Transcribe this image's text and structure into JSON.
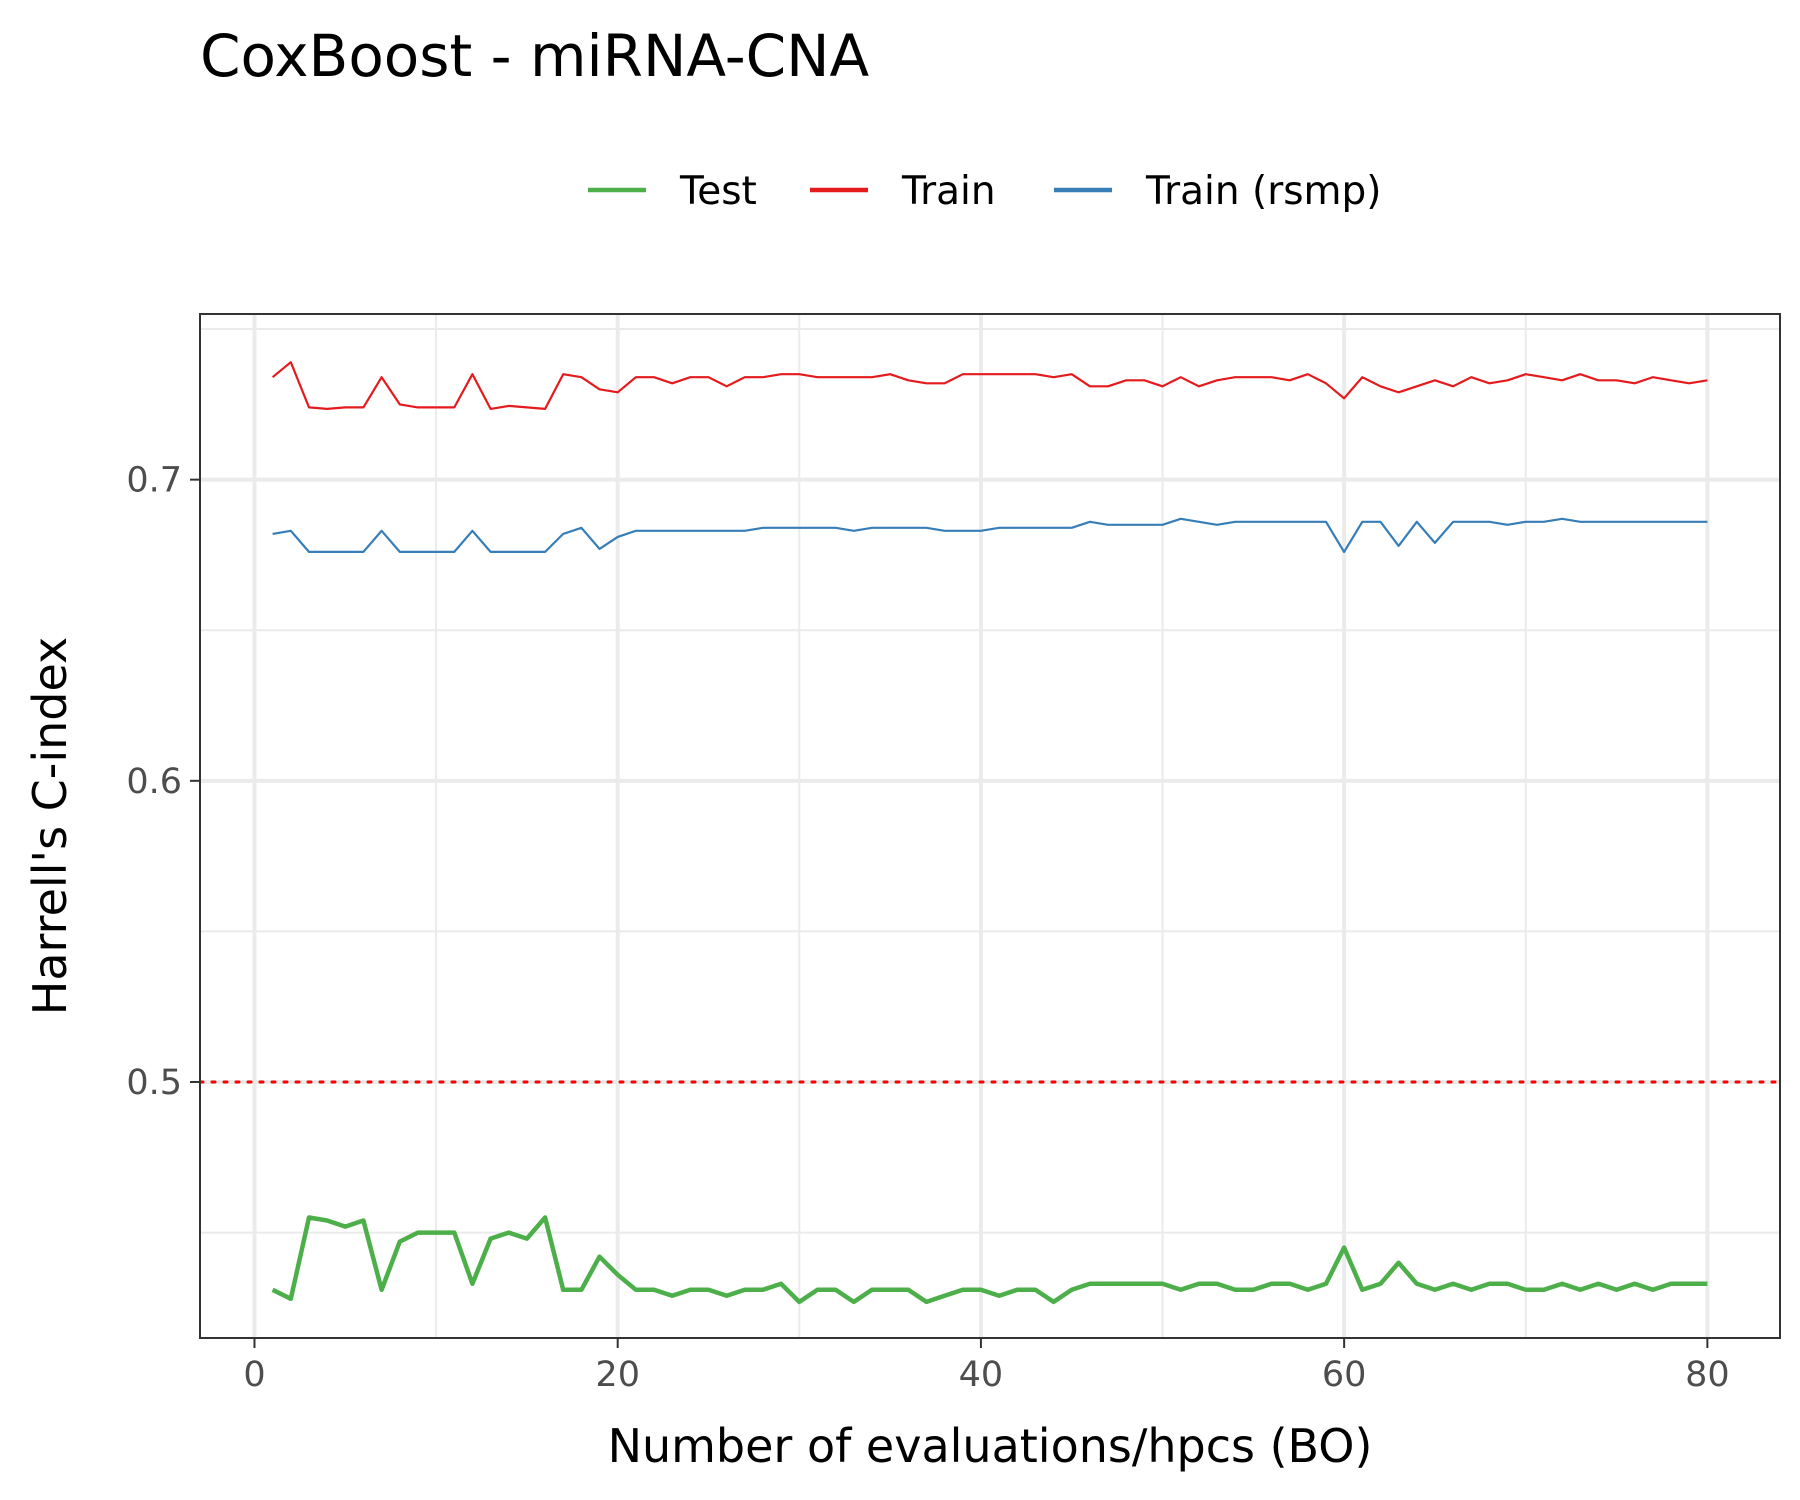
{
  "chart_data": {
    "type": "line",
    "title": "CoxBoost - miRNA-CNA",
    "xlabel": "Number of evaluations/hpcs (BO)",
    "ylabel": "Harrell's C-index",
    "xlim": [
      -3,
      84
    ],
    "ylim": [
      0.415,
      0.755
    ],
    "xticks": [
      "0",
      "20",
      "40",
      "60",
      "80"
    ],
    "xtick_values": [
      0,
      20,
      40,
      60,
      80
    ],
    "yticks": [
      "0.5",
      "0.6",
      "0.7"
    ],
    "ytick_values": [
      0.5,
      0.6,
      0.7
    ],
    "x_minor_gridlines": [
      10,
      30,
      50,
      70
    ],
    "y_minor_gridlines": [
      0.45,
      0.55,
      0.65,
      0.75
    ],
    "reference_line": {
      "y": 0.5,
      "color": "#ff0000",
      "style": "dotted"
    },
    "grid": true,
    "legend_position": "top",
    "series": [
      {
        "name": "Test",
        "color": "#4daf4a",
        "width": "thick",
        "x": [
          1,
          2,
          3,
          4,
          5,
          6,
          7,
          8,
          9,
          10,
          11,
          12,
          13,
          14,
          15,
          16,
          17,
          18,
          19,
          20,
          21,
          22,
          23,
          24,
          25,
          26,
          27,
          28,
          29,
          30,
          31,
          32,
          33,
          34,
          35,
          36,
          37,
          38,
          39,
          40,
          41,
          42,
          43,
          44,
          45,
          46,
          47,
          48,
          49,
          50,
          51,
          52,
          53,
          54,
          55,
          56,
          57,
          58,
          59,
          60,
          61,
          62,
          63,
          64,
          65,
          66,
          67,
          68,
          69,
          70,
          71,
          72,
          73,
          74,
          75,
          76,
          77,
          78,
          79,
          80
        ],
        "values": [
          0.431,
          0.428,
          0.455,
          0.454,
          0.452,
          0.454,
          0.431,
          0.447,
          0.45,
          0.45,
          0.45,
          0.433,
          0.448,
          0.45,
          0.448,
          0.455,
          0.431,
          0.431,
          0.442,
          0.436,
          0.431,
          0.431,
          0.429,
          0.431,
          0.431,
          0.429,
          0.431,
          0.431,
          0.433,
          0.427,
          0.431,
          0.431,
          0.427,
          0.431,
          0.431,
          0.431,
          0.427,
          0.429,
          0.431,
          0.431,
          0.429,
          0.431,
          0.431,
          0.427,
          0.431,
          0.433,
          0.433,
          0.433,
          0.433,
          0.433,
          0.431,
          0.433,
          0.433,
          0.431,
          0.431,
          0.433,
          0.433,
          0.431,
          0.433,
          0.445,
          0.431,
          0.433,
          0.44,
          0.433,
          0.431,
          0.433,
          0.431,
          0.433,
          0.433,
          0.431,
          0.431,
          0.433,
          0.431,
          0.433,
          0.431,
          0.433,
          0.431,
          0.433,
          0.433,
          0.433
        ]
      },
      {
        "name": "Train",
        "color": "#e41a1c",
        "width": "thin",
        "x": [
          1,
          2,
          3,
          4,
          5,
          6,
          7,
          8,
          9,
          10,
          11,
          12,
          13,
          14,
          15,
          16,
          17,
          18,
          19,
          20,
          21,
          22,
          23,
          24,
          25,
          26,
          27,
          28,
          29,
          30,
          31,
          32,
          33,
          34,
          35,
          36,
          37,
          38,
          39,
          40,
          41,
          42,
          43,
          44,
          45,
          46,
          47,
          48,
          49,
          50,
          51,
          52,
          53,
          54,
          55,
          56,
          57,
          58,
          59,
          60,
          61,
          62,
          63,
          64,
          65,
          66,
          67,
          68,
          69,
          70,
          71,
          72,
          73,
          74,
          75,
          76,
          77,
          78,
          79,
          80
        ],
        "values": [
          0.734,
          0.739,
          0.724,
          0.7235,
          0.724,
          0.724,
          0.734,
          0.725,
          0.724,
          0.724,
          0.724,
          0.735,
          0.7235,
          0.7245,
          0.724,
          0.7235,
          0.735,
          0.734,
          0.73,
          0.729,
          0.734,
          0.734,
          0.732,
          0.734,
          0.734,
          0.731,
          0.734,
          0.734,
          0.735,
          0.735,
          0.734,
          0.734,
          0.734,
          0.734,
          0.735,
          0.733,
          0.732,
          0.732,
          0.735,
          0.735,
          0.735,
          0.735,
          0.735,
          0.734,
          0.735,
          0.731,
          0.731,
          0.733,
          0.733,
          0.731,
          0.734,
          0.731,
          0.733,
          0.734,
          0.734,
          0.734,
          0.733,
          0.735,
          0.732,
          0.727,
          0.734,
          0.731,
          0.729,
          0.731,
          0.733,
          0.731,
          0.734,
          0.732,
          0.733,
          0.735,
          0.734,
          0.733,
          0.735,
          0.733,
          0.733,
          0.732,
          0.734,
          0.733,
          0.732,
          0.733
        ]
      },
      {
        "name": "Train (rsmp)",
        "color": "#377eb8",
        "width": "thin",
        "x": [
          1,
          2,
          3,
          4,
          5,
          6,
          7,
          8,
          9,
          10,
          11,
          12,
          13,
          14,
          15,
          16,
          17,
          18,
          19,
          20,
          21,
          22,
          23,
          24,
          25,
          26,
          27,
          28,
          29,
          30,
          31,
          32,
          33,
          34,
          35,
          36,
          37,
          38,
          39,
          40,
          41,
          42,
          43,
          44,
          45,
          46,
          47,
          48,
          49,
          50,
          51,
          52,
          53,
          54,
          55,
          56,
          57,
          58,
          59,
          60,
          61,
          62,
          63,
          64,
          65,
          66,
          67,
          68,
          69,
          70,
          71,
          72,
          73,
          74,
          75,
          76,
          77,
          78,
          79,
          80
        ],
        "values": [
          0.682,
          0.683,
          0.676,
          0.676,
          0.676,
          0.676,
          0.683,
          0.676,
          0.676,
          0.676,
          0.676,
          0.683,
          0.676,
          0.676,
          0.676,
          0.676,
          0.682,
          0.684,
          0.677,
          0.681,
          0.683,
          0.683,
          0.683,
          0.683,
          0.683,
          0.683,
          0.683,
          0.684,
          0.684,
          0.684,
          0.684,
          0.684,
          0.683,
          0.684,
          0.684,
          0.684,
          0.684,
          0.683,
          0.683,
          0.683,
          0.684,
          0.684,
          0.684,
          0.684,
          0.684,
          0.686,
          0.685,
          0.685,
          0.685,
          0.685,
          0.687,
          0.686,
          0.685,
          0.686,
          0.686,
          0.686,
          0.686,
          0.686,
          0.686,
          0.676,
          0.686,
          0.686,
          0.678,
          0.686,
          0.679,
          0.686,
          0.686,
          0.686,
          0.685,
          0.686,
          0.686,
          0.687,
          0.686,
          0.686,
          0.686,
          0.686,
          0.686,
          0.686,
          0.686,
          0.686
        ]
      }
    ]
  }
}
